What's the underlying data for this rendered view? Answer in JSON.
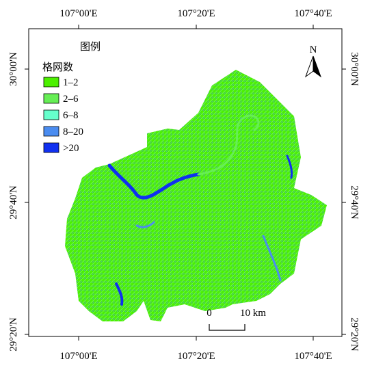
{
  "legend": {
    "title": "图例",
    "subtitle": "格网数",
    "items": [
      {
        "label": "1–2",
        "color": "#4cf000"
      },
      {
        "label": "2–6",
        "color": "#66ee55"
      },
      {
        "label": "6–8",
        "color": "#66ffcc"
      },
      {
        "label": "8–20",
        "color": "#4a8cf0"
      },
      {
        "label": ">20",
        "color": "#1030f0"
      }
    ]
  },
  "axes": {
    "top": [
      "107°00'E",
      "107°20'E",
      "107°40'E"
    ],
    "bottom": [
      "107°00'E",
      "107°20'E",
      "107°40'E"
    ],
    "left": [
      "30°00'N",
      "29°40'N",
      "29°20'N"
    ],
    "right": [
      "30°00'N",
      "29°40'N",
      "29°20'N"
    ]
  },
  "north": "N",
  "scale": {
    "start": "0",
    "end": "10 km"
  }
}
